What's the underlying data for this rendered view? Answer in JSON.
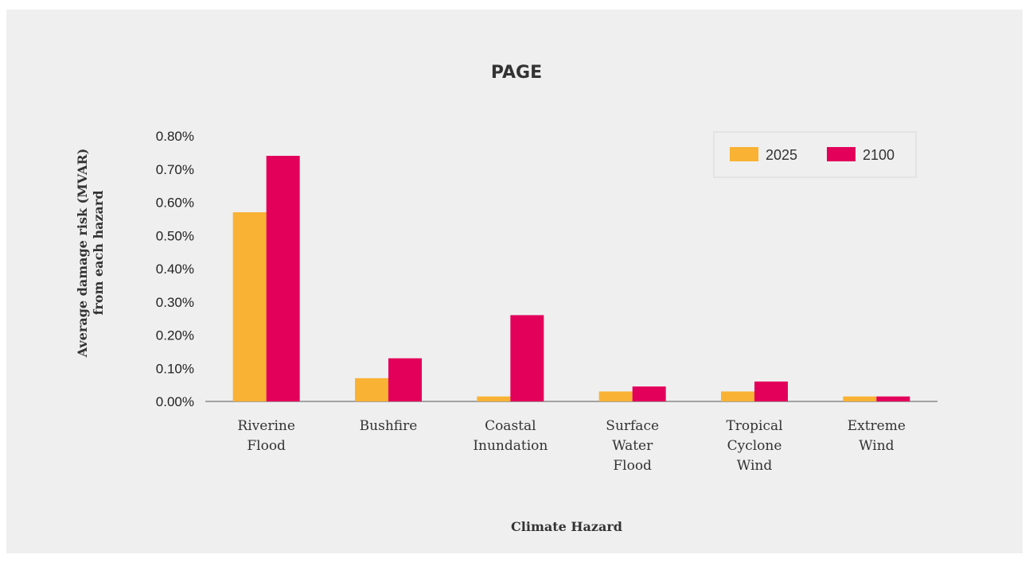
{
  "chart_data": {
    "type": "bar",
    "title": "PAGE",
    "xlabel": "Climate Hazard",
    "ylabel": [
      "Average damage risk (MVAR)",
      "from each hazard"
    ],
    "categories": [
      [
        "Riverine",
        "Flood"
      ],
      [
        "Bushfire"
      ],
      [
        "Coastal",
        "Inundation"
      ],
      [
        "Surface",
        "Water",
        "Flood"
      ],
      [
        "Tropical",
        "Cyclone",
        "Wind"
      ],
      [
        "Extreme",
        "Wind"
      ]
    ],
    "series": [
      {
        "name": "2025",
        "color": "#F9B233",
        "values": [
          0.57,
          0.07,
          0.015,
          0.03,
          0.03,
          0.015
        ]
      },
      {
        "name": "2100",
        "color": "#E3005A",
        "values": [
          0.74,
          0.13,
          0.26,
          0.045,
          0.06,
          0.015
        ]
      }
    ],
    "ylim": [
      0,
      0.8
    ],
    "yticks": [
      "0.00%",
      "0.10%",
      "0.20%",
      "0.30%",
      "0.40%",
      "0.50%",
      "0.60%",
      "0.70%",
      "0.80%"
    ],
    "legend_position": "top-right",
    "grid": false
  }
}
